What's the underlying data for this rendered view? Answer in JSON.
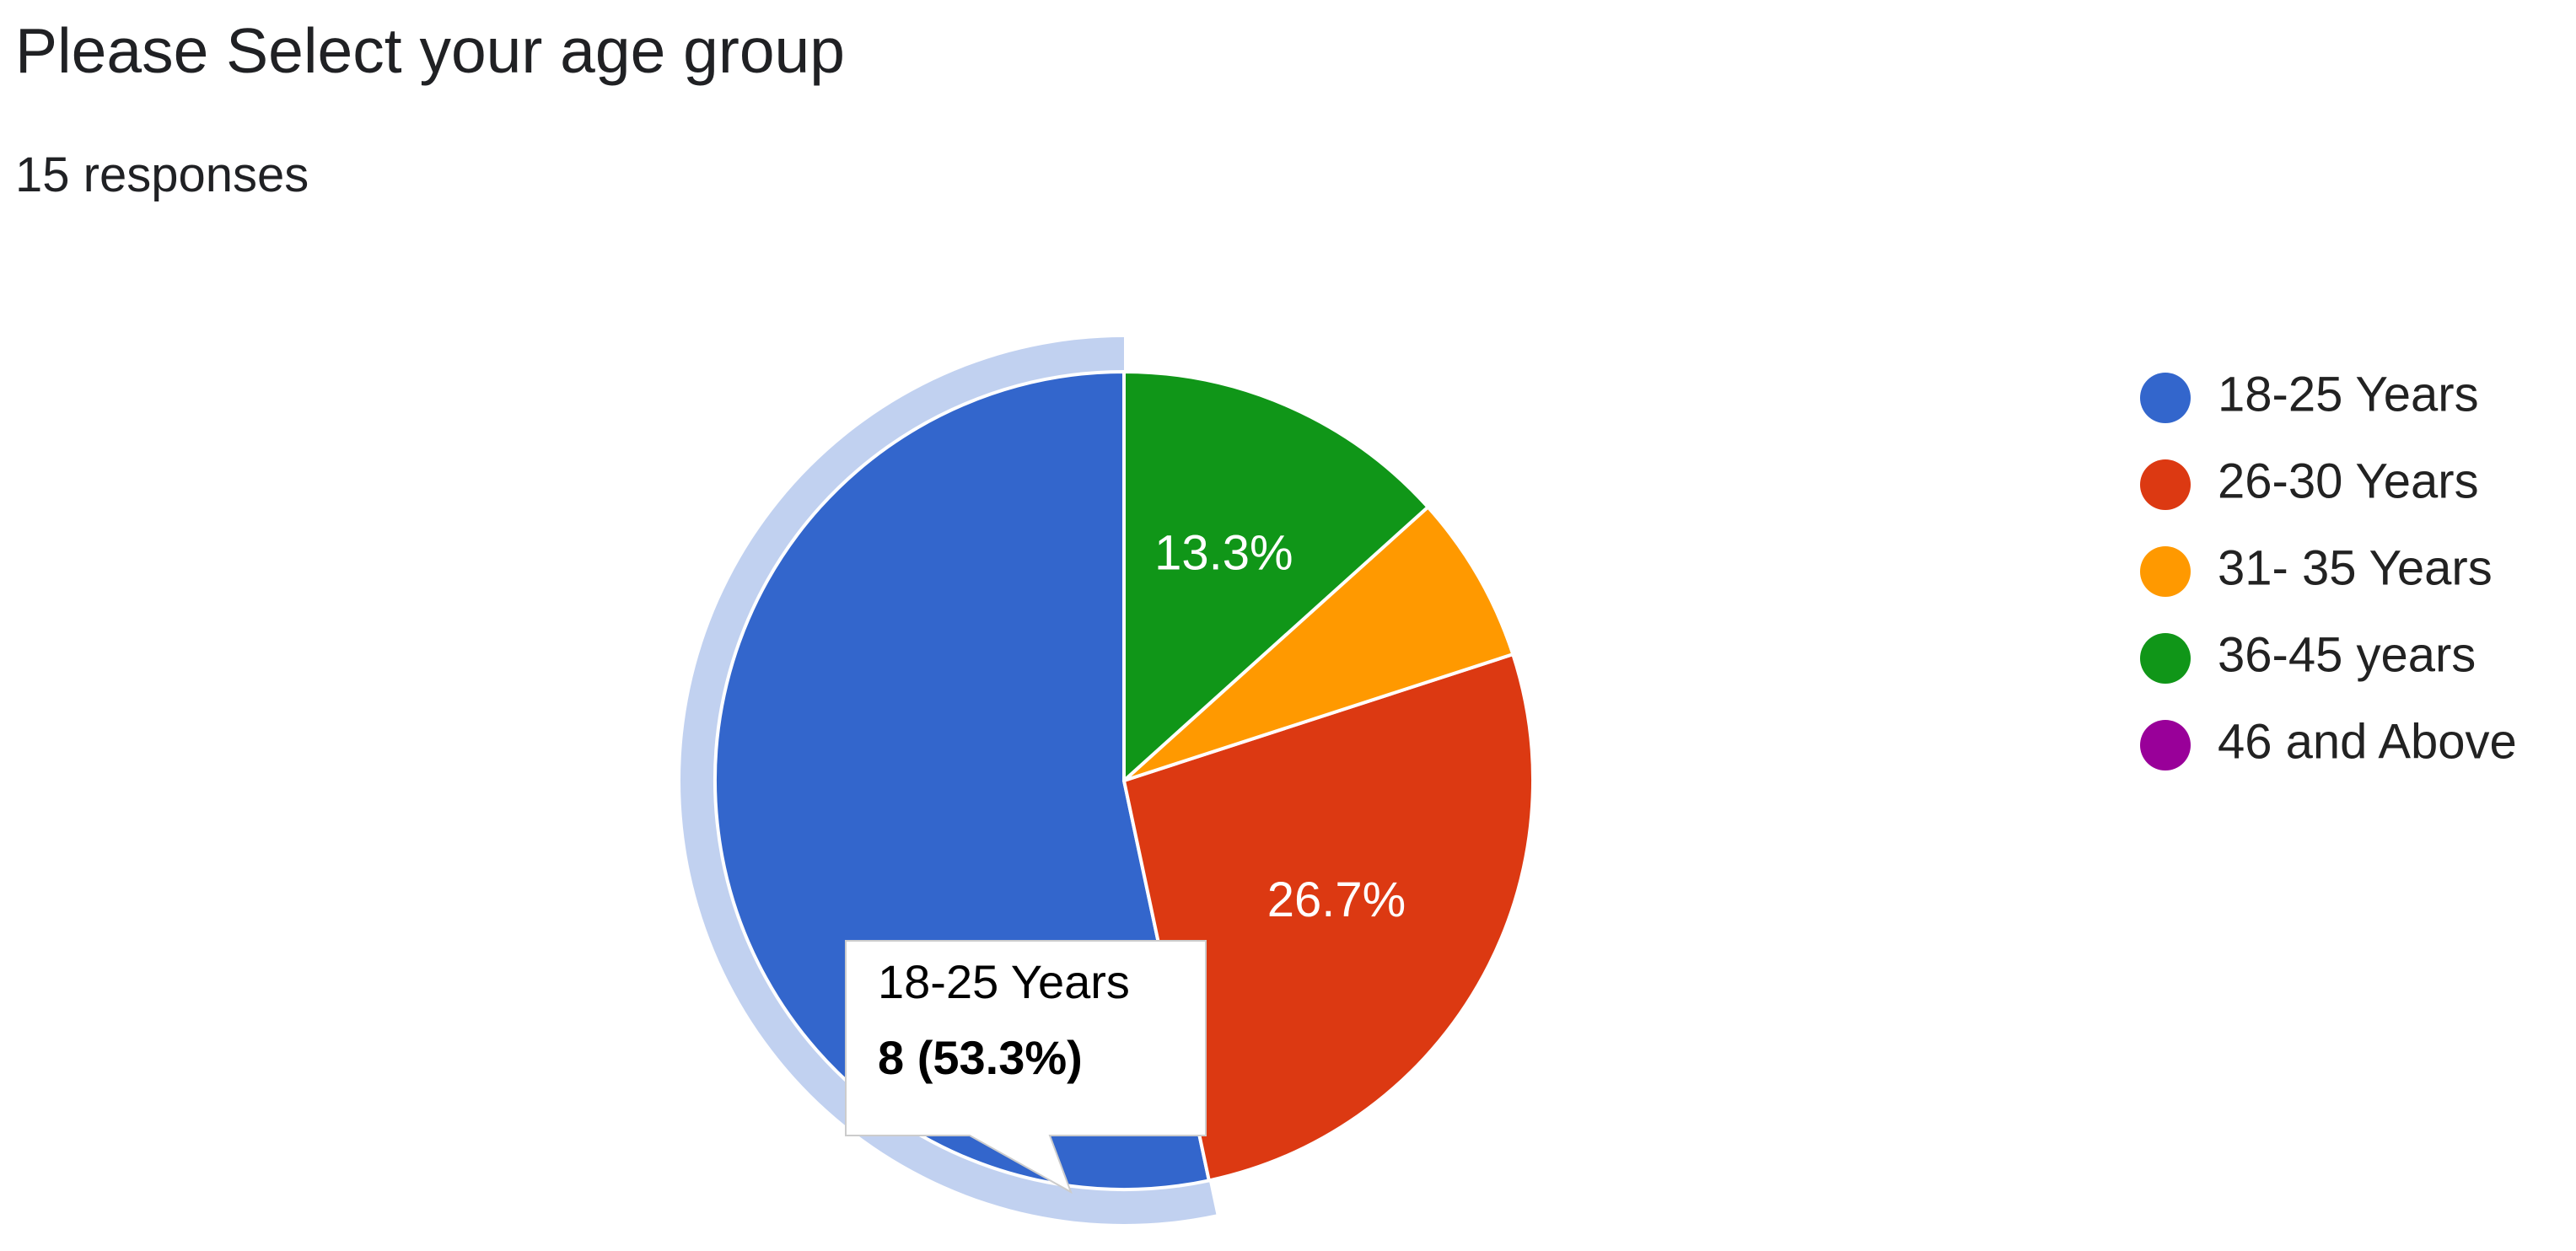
{
  "question": {
    "title": "Please Select your age group",
    "responses": "15 responses"
  },
  "chart_data": {
    "type": "pie",
    "start_angle_deg": 90,
    "direction": "counter-clockwise",
    "slices": [
      {
        "label": "18-25 Years",
        "count": 8,
        "percent": 53.3,
        "color": "#3366cc",
        "label_text": ""
      },
      {
        "label": "26-30 Years",
        "count": 4,
        "percent": 26.7,
        "color": "#dc3912",
        "label_text": "26.7%"
      },
      {
        "label": "31- 35 Years",
        "count": 1,
        "percent": 6.7,
        "color": "#ff9900",
        "label_text": ""
      },
      {
        "label": "36-45 years",
        "count": 2,
        "percent": 13.3,
        "color": "#109618",
        "label_text": "13.3%"
      },
      {
        "label": "46 and Above",
        "count": 0,
        "percent": 0,
        "color": "#990099",
        "label_text": ""
      }
    ],
    "highlighted_slice": 0,
    "tooltip": {
      "title": "18-25 Years",
      "value": "8 (53.3%)"
    },
    "legend_position": "right"
  }
}
